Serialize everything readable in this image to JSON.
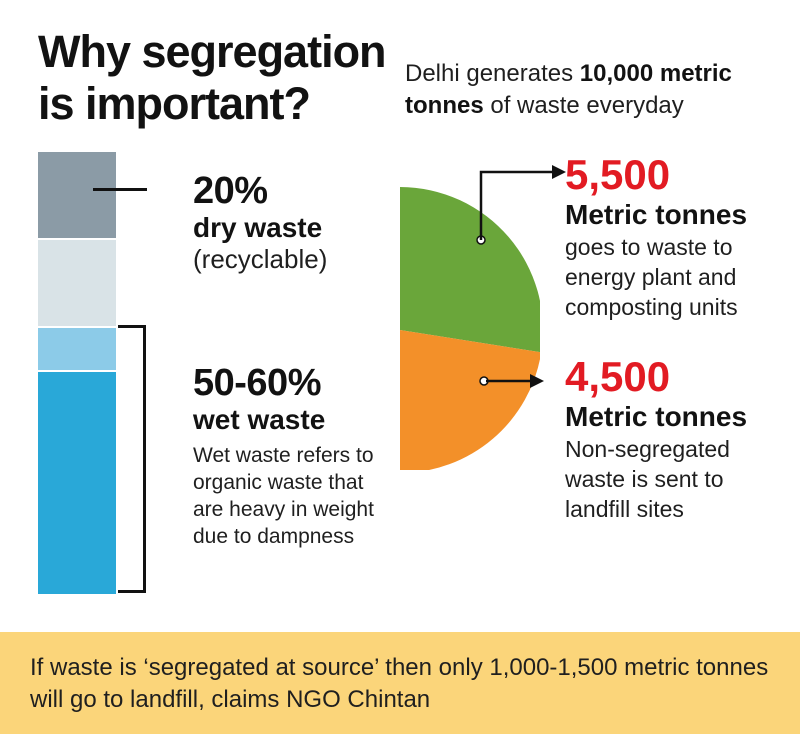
{
  "title": "Why segregation is important?",
  "intro": {
    "prefix": "Delhi generates ",
    "amount": "10,000 metric tonnes",
    "suffix": " of waste everyday"
  },
  "dry": {
    "percent": "20%",
    "label": "dry waste",
    "note": "(recyclable)"
  },
  "wet": {
    "percent": "50-60%",
    "label": "wet waste",
    "description": "Wet waste refers to organic waste that are heavy in weight due to dampness"
  },
  "disposal": [
    {
      "value": "5,500",
      "unit": "Metric tonnes",
      "description": "goes to waste to energy plant and composting units"
    },
    {
      "value": "4,500",
      "unit": "Metric tonnes",
      "description": "Non-segregated waste is sent to landfill sites"
    }
  ],
  "footer": "If waste is ‘segregated at source’ then only 1,000-1,500 metric tonnes will go to landfill, claims NGO Chintan",
  "colors": {
    "dry": "#8b9ba6",
    "other": "#d9e3e7",
    "wet_light": "#8ccbe8",
    "wet": "#29a8d8",
    "pie_energy": "#6aa63a",
    "pie_landfill": "#f39029",
    "accent_red": "#e21b23",
    "footer_bg": "#fbd57a"
  },
  "chart_data": [
    {
      "type": "bar",
      "categories": [
        "dry waste",
        "wet waste"
      ],
      "values": [
        20,
        60
      ],
      "unit": "%"
    },
    {
      "type": "pie",
      "categories": [
        "goes to waste to energy plant and composting units",
        "Non-segregated waste is sent to landfill sites"
      ],
      "values": [
        5500,
        4500
      ],
      "unit": "Metric tonnes"
    }
  ]
}
